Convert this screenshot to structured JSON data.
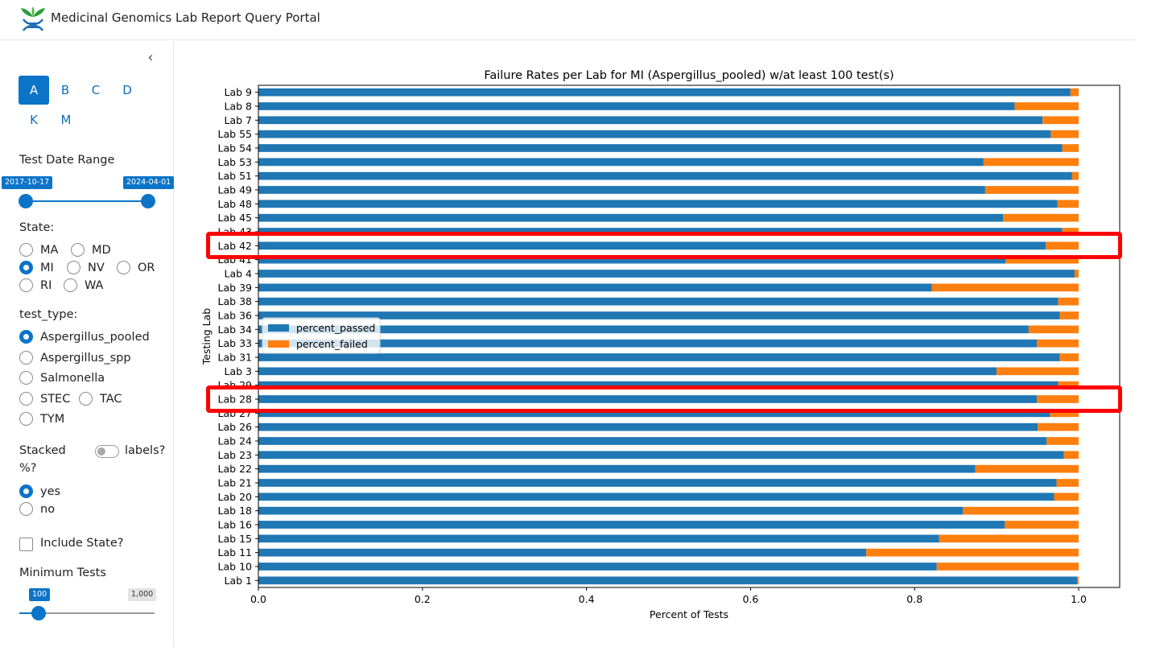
{
  "header": {
    "title": "Medicinal Genomics Lab Report Query Portal",
    "logo_icon": "dna-leaf-logo-icon"
  },
  "sidebar": {
    "collapse_icon": "chevron-left-icon",
    "letter_tabs": [
      {
        "label": "A",
        "active": true
      },
      {
        "label": "B",
        "active": false
      },
      {
        "label": "C",
        "active": false
      },
      {
        "label": "D",
        "active": false
      },
      {
        "label": "K",
        "active": false
      },
      {
        "label": "M",
        "active": false
      }
    ],
    "date_range": {
      "label": "Test Date Range",
      "start": "2017-10-17",
      "end": "2024-04-01"
    },
    "state": {
      "label": "State:",
      "options": [
        "MA",
        "MD",
        "MI",
        "NV",
        "OR",
        "RI",
        "WA"
      ],
      "selected": "MI"
    },
    "test_type": {
      "label": "test_type:",
      "options": [
        "Aspergillus_pooled",
        "Aspergillus_spp",
        "Salmonella",
        "STEC",
        "TAC",
        "TYM"
      ],
      "selected": "Aspergillus_pooled"
    },
    "stacked": {
      "label": "Stacked",
      "label2": "%?",
      "toggle_label": "labels?",
      "options": [
        "yes",
        "no"
      ],
      "selected": "yes"
    },
    "include_state": {
      "label": "Include State?",
      "checked": false
    },
    "minimum_tests": {
      "label": "Minimum Tests",
      "value": "100",
      "max": "1,000",
      "value_fraction": 0.1
    }
  },
  "chart_data": {
    "type": "bar",
    "orientation": "horizontal",
    "stacked": true,
    "title": "Failure Rates per Lab for MI (Aspergillus_pooled) w/at least 100 test(s)",
    "xlabel": "Percent of Tests",
    "ylabel": "Testing Lab",
    "xlim": [
      0,
      1.05
    ],
    "xticks": [
      "0.0",
      "0.2",
      "0.4",
      "0.6",
      "0.8",
      "1.0"
    ],
    "legend_placement": "center-left",
    "categories": [
      "Lab 9",
      "Lab 8",
      "Lab 7",
      "Lab 55",
      "Lab 54",
      "Lab 53",
      "Lab 51",
      "Lab 49",
      "Lab 48",
      "Lab 45",
      "Lab 43",
      "Lab 42",
      "Lab 41",
      "Lab 4",
      "Lab 39",
      "Lab 38",
      "Lab 36",
      "Lab 34",
      "Lab 33",
      "Lab 31",
      "Lab 3",
      "Lab 29",
      "Lab 28",
      "Lab 27",
      "Lab 26",
      "Lab 24",
      "Lab 23",
      "Lab 22",
      "Lab 21",
      "Lab 20",
      "Lab 18",
      "Lab 16",
      "Lab 15",
      "Lab 11",
      "Lab 10",
      "Lab 1"
    ],
    "series": [
      {
        "name": "percent_passed",
        "color": "#1f77b4",
        "values": [
          0.99,
          0.922,
          0.956,
          0.966,
          0.98,
          0.884,
          0.992,
          0.886,
          0.974,
          0.908,
          0.98,
          0.96,
          0.911,
          0.995,
          0.821,
          0.975,
          0.977,
          0.939,
          0.949,
          0.977,
          0.9,
          0.975,
          0.949,
          0.965,
          0.95,
          0.961,
          0.982,
          0.874,
          0.973,
          0.97,
          0.859,
          0.91,
          0.83,
          0.741,
          0.827,
          0.998
        ]
      },
      {
        "name": "percent_failed",
        "color": "#ff7f0e",
        "values": [
          0.01,
          0.078,
          0.044,
          0.034,
          0.02,
          0.116,
          0.008,
          0.114,
          0.026,
          0.092,
          0.02,
          0.04,
          0.089,
          0.005,
          0.179,
          0.025,
          0.023,
          0.061,
          0.051,
          0.023,
          0.1,
          0.025,
          0.051,
          0.035,
          0.05,
          0.039,
          0.018,
          0.126,
          0.027,
          0.03,
          0.141,
          0.09,
          0.17,
          0.259,
          0.173,
          0.002
        ]
      }
    ],
    "highlighted": [
      "Lab 42",
      "Lab 28"
    ],
    "highlight_color": "#ff0000"
  }
}
